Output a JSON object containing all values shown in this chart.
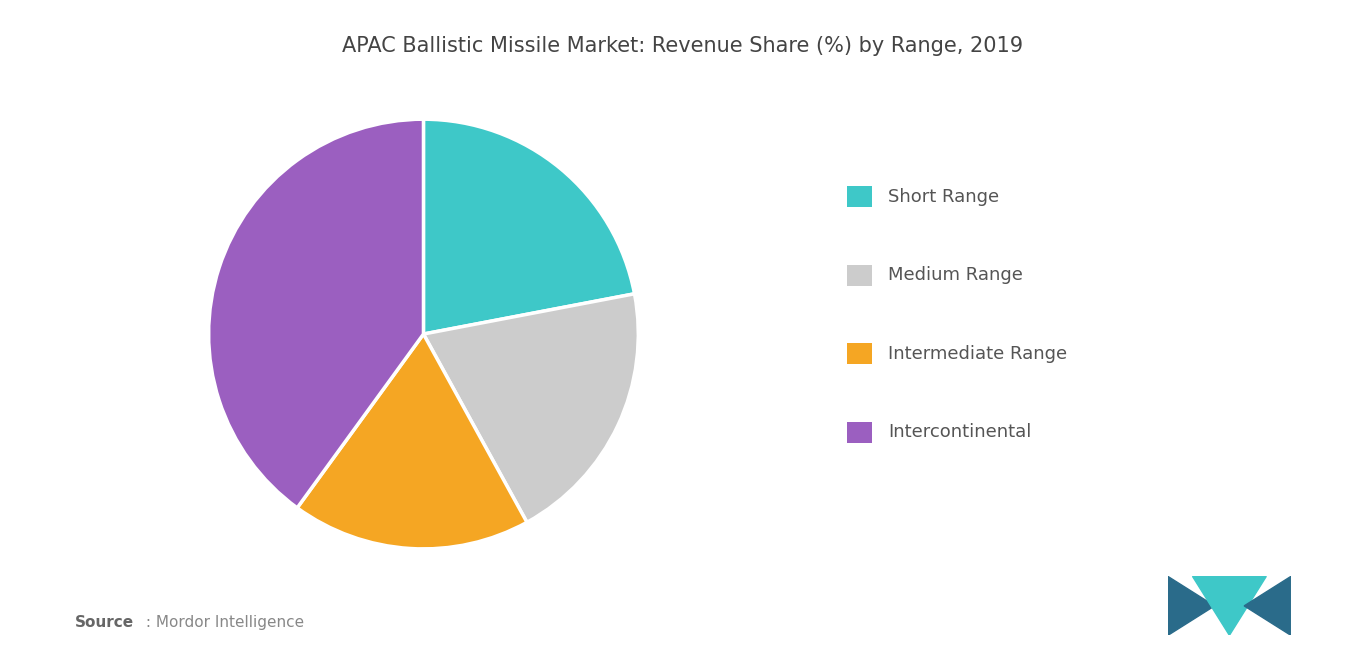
{
  "title": "APAC Ballistic Missile Market: Revenue Share (%) by Range, 2019",
  "slices": [
    {
      "label": "Short Range",
      "value": 22,
      "color": "#3ec8c8"
    },
    {
      "label": "Medium Range",
      "value": 20,
      "color": "#cccccc"
    },
    {
      "label": "Intermediate Range",
      "value": 18,
      "color": "#f5a623"
    },
    {
      "label": "Intercontinental",
      "value": 40,
      "color": "#9b5fc0"
    }
  ],
  "background_color": "#ffffff",
  "title_fontsize": 15,
  "title_color": "#444444",
  "legend_fontsize": 13,
  "legend_text_color": "#555555",
  "source_bold_text": "Source",
  "source_rest_text": " : Mordor Intelligence",
  "startangle": 90
}
